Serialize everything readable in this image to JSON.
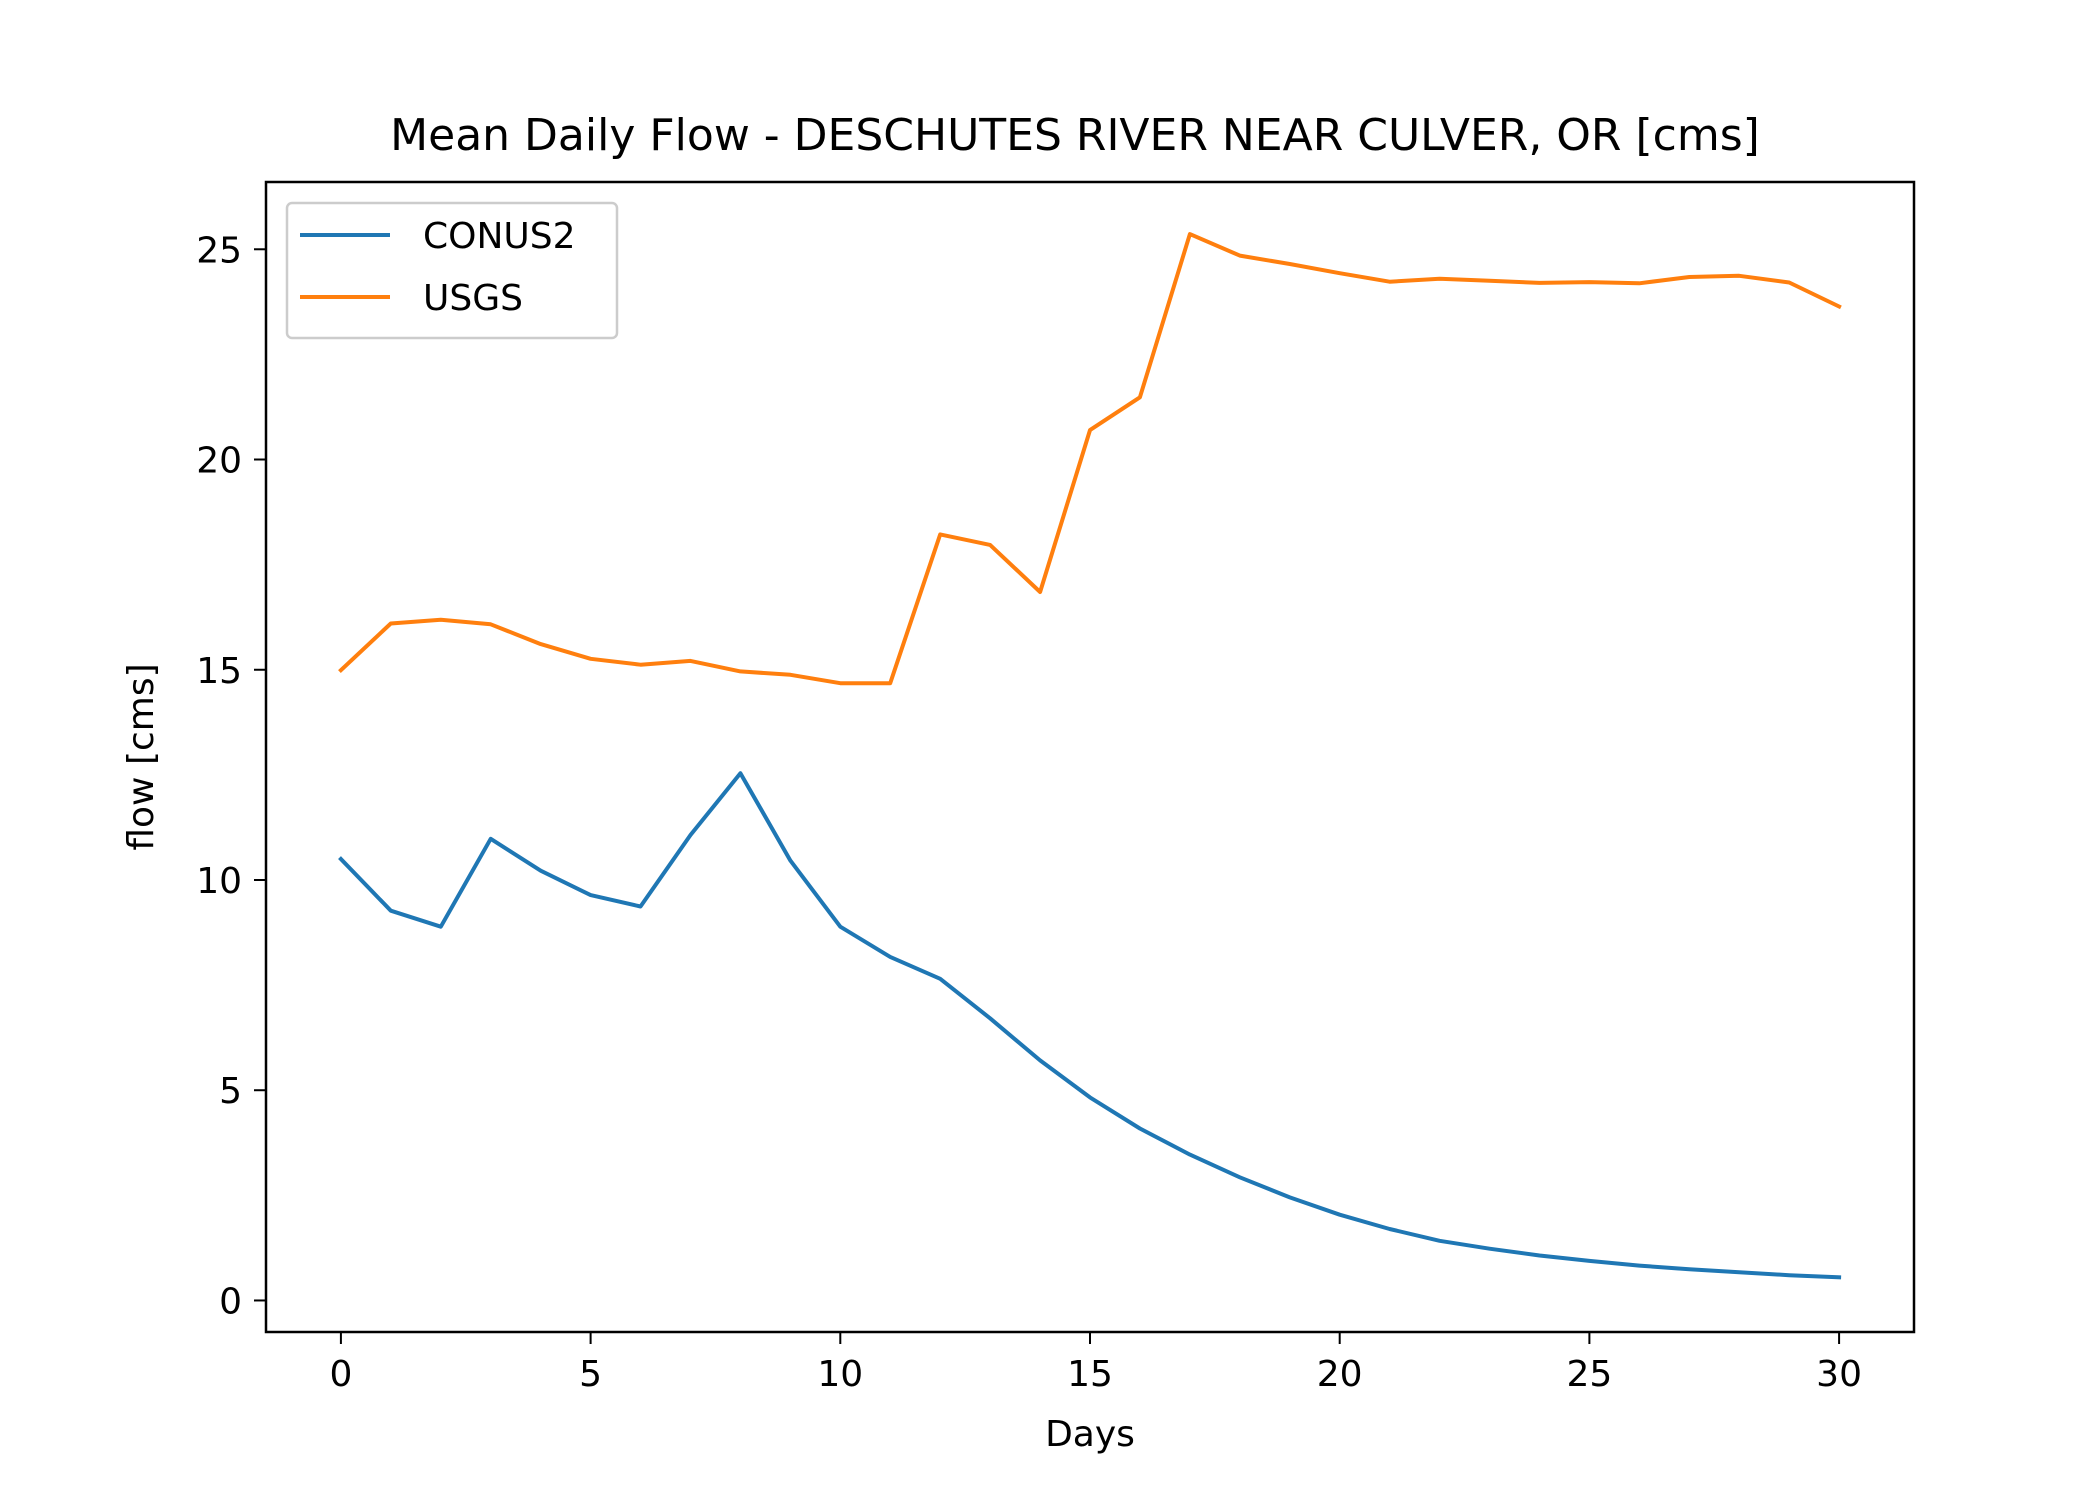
{
  "chart_data": {
    "type": "line",
    "title": "Mean Daily Flow - DESCHUTES RIVER NEAR CULVER, OR [cms]",
    "xlabel": "Days",
    "ylabel": "flow [cms]",
    "xlim": [
      -1.5,
      31.5
    ],
    "ylim": [
      -0.75,
      26.6
    ],
    "x_ticks": [
      0,
      5,
      10,
      15,
      20,
      25,
      30
    ],
    "y_ticks": [
      0,
      5,
      10,
      15,
      20,
      25
    ],
    "grid": false,
    "legend_position": "upper left",
    "x": [
      0,
      1,
      2,
      3,
      4,
      5,
      6,
      7,
      8,
      9,
      10,
      11,
      12,
      13,
      14,
      15,
      16,
      17,
      18,
      19,
      20,
      21,
      22,
      23,
      24,
      25,
      26,
      27,
      28,
      29,
      30
    ],
    "series": [
      {
        "name": "CONUS2",
        "color": "#1f77b4",
        "values": [
          10.5,
          9.27,
          8.89,
          10.98,
          10.22,
          9.64,
          9.37,
          11.07,
          12.54,
          10.46,
          8.89,
          8.17,
          7.65,
          6.71,
          5.71,
          4.83,
          4.09,
          3.47,
          2.93,
          2.45,
          2.04,
          1.7,
          1.42,
          1.23,
          1.07,
          0.94,
          0.83,
          0.74,
          0.67,
          0.6,
          0.55
        ]
      },
      {
        "name": "USGS",
        "color": "#ff7f0e",
        "values": [
          14.99,
          16.1,
          16.19,
          16.08,
          15.61,
          15.26,
          15.12,
          15.21,
          14.96,
          14.88,
          14.68,
          14.68,
          18.22,
          17.97,
          16.85,
          20.7,
          21.48,
          25.36,
          24.85,
          24.65,
          24.43,
          24.23,
          24.3,
          24.25,
          24.2,
          24.22,
          24.19,
          24.34,
          24.37,
          24.21,
          23.64
        ]
      }
    ]
  }
}
